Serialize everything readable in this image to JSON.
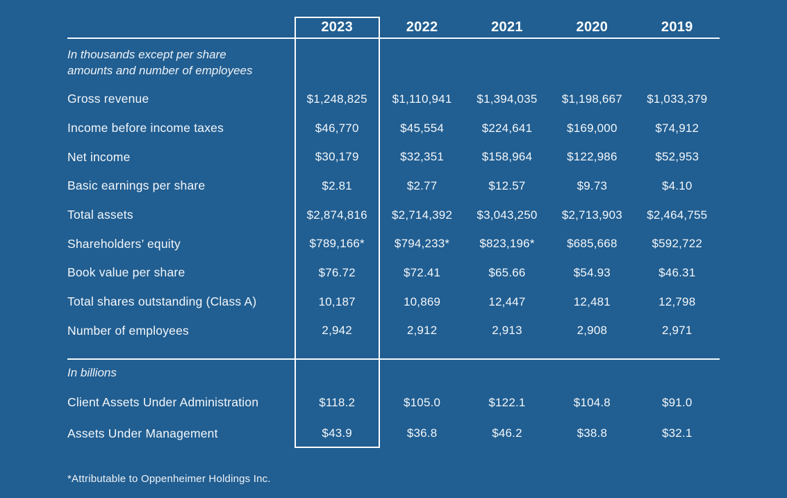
{
  "page": {
    "background_color": "#215e91",
    "text_color": "#f3f7fa",
    "accent_line_color": "#f6fafc"
  },
  "table": {
    "years": [
      "2023",
      "2022",
      "2021",
      "2020",
      "2019"
    ],
    "highlight_year": "2023",
    "section_thousands": {
      "note_line1": "In thousands except per share",
      "note_line2": "amounts and number of employees",
      "rows": [
        {
          "label": "Gross revenue",
          "values": [
            "$1,248,825",
            "$1,110,941",
            "$1,394,035",
            "$1,198,667",
            "$1,033,379"
          ]
        },
        {
          "label": "Income before income taxes",
          "values": [
            "$46,770",
            "$45,554",
            "$224,641",
            "$169,000",
            "$74,912"
          ]
        },
        {
          "label": "Net income",
          "values": [
            "$30,179",
            "$32,351",
            "$158,964",
            "$122,986",
            "$52,953"
          ]
        },
        {
          "label": "Basic earnings per share",
          "values": [
            "$2.81",
            "$2.77",
            "$12.57",
            "$9.73",
            "$4.10"
          ]
        },
        {
          "label": "Total assets",
          "values": [
            "$2,874,816",
            "$2,714,392",
            "$3,043,250",
            "$2,713,903",
            "$2,464,755"
          ]
        },
        {
          "label": "Shareholders’ equity",
          "values": [
            "$789,166*",
            "$794,233*",
            "$823,196*",
            "$685,668",
            "$592,722"
          ]
        },
        {
          "label": "Book value per share",
          "values": [
            "$76.72",
            "$72.41",
            "$65.66",
            "$54.93",
            "$46.31"
          ]
        },
        {
          "label": "Total shares outstanding (Class A)",
          "values": [
            "10,187",
            "10,869",
            "12,447",
            "12,481",
            "12,798"
          ]
        },
        {
          "label": "Number of employees",
          "values": [
            "2,942",
            "2,912",
            "2,913",
            "2,908",
            "2,971"
          ]
        }
      ]
    },
    "section_billions": {
      "note": "In billions",
      "rows": [
        {
          "label": "Client Assets Under Administration",
          "values": [
            "$118.2",
            "$105.0",
            "$122.1",
            "$104.8",
            "$91.0"
          ]
        },
        {
          "label": "Assets Under Management",
          "values": [
            "$43.9",
            "$36.8",
            "$46.2",
            "$38.8",
            "$32.1"
          ]
        }
      ]
    },
    "footnote": "*Attributable to Oppenheimer Holdings Inc."
  }
}
